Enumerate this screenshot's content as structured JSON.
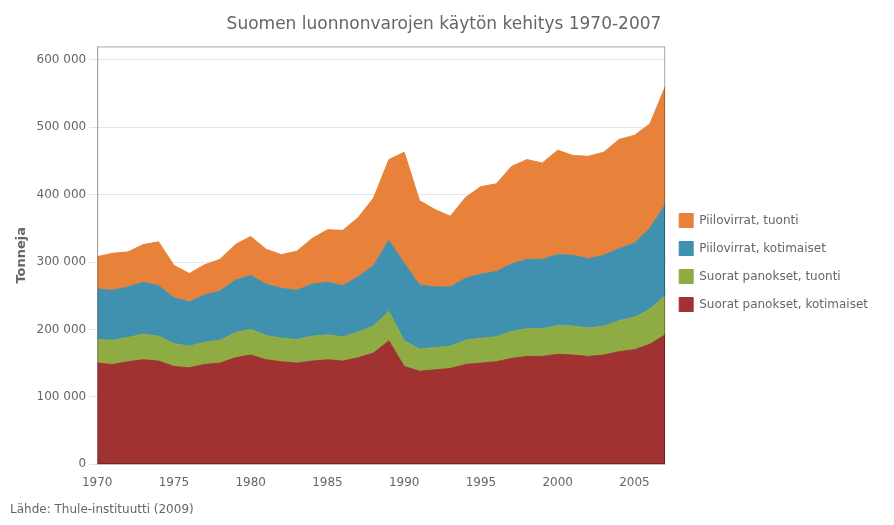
{
  "chart_data": {
    "type": "area",
    "stacked": true,
    "title": "Suomen luonnonvarojen käytön kehitys 1970-2007",
    "ylabel": "Tonneja",
    "annotations": [
      "Lähde: Thule-instituutti (2009)"
    ],
    "x": [
      1970,
      1971,
      1972,
      1973,
      1974,
      1975,
      1976,
      1977,
      1978,
      1979,
      1980,
      1981,
      1982,
      1983,
      1984,
      1985,
      1986,
      1987,
      1988,
      1989,
      1990,
      1991,
      1992,
      1993,
      1994,
      1995,
      1996,
      1997,
      1998,
      1999,
      2000,
      2001,
      2002,
      2003,
      2004,
      2005,
      2006,
      2007
    ],
    "series": [
      {
        "name": "Suorat panokset, kotimaiset",
        "color": "#a03232",
        "values": [
          150000,
          148000,
          152000,
          155000,
          153000,
          145000,
          143000,
          148000,
          150000,
          158000,
          162000,
          155000,
          152000,
          150000,
          153000,
          155000,
          153000,
          158000,
          165000,
          183000,
          145000,
          138000,
          140000,
          142000,
          148000,
          150000,
          152000,
          157000,
          160000,
          160000,
          163000,
          162000,
          160000,
          162000,
          167000,
          170000,
          178000,
          192000
        ]
      },
      {
        "name": "Suorat panokset, tuonti",
        "color": "#8fac44",
        "values": [
          35000,
          36000,
          36000,
          38000,
          37000,
          34000,
          32000,
          33000,
          34000,
          37000,
          38000,
          36000,
          35000,
          35000,
          37000,
          37000,
          36000,
          38000,
          40000,
          44000,
          38000,
          33000,
          33000,
          33000,
          36000,
          37000,
          37000,
          40000,
          41000,
          41000,
          43000,
          43000,
          42000,
          43000,
          46000,
          48000,
          52000,
          58000
        ]
      },
      {
        "name": "Piilovirrat, kotimaiset",
        "color": "#4090b0",
        "values": [
          75000,
          74000,
          75000,
          77000,
          75000,
          68000,
          66000,
          70000,
          73000,
          78000,
          80000,
          76000,
          74000,
          73000,
          77000,
          78000,
          76000,
          82000,
          90000,
          105000,
          115000,
          95000,
          90000,
          88000,
          92000,
          95000,
          97000,
          100000,
          103000,
          103000,
          105000,
          105000,
          103000,
          105000,
          107000,
          110000,
          120000,
          135000
        ]
      },
      {
        "name": "Piilovirrat, tuonti",
        "color": "#e8823a",
        "values": [
          48000,
          55000,
          52000,
          56000,
          65000,
          48000,
          42000,
          45000,
          47000,
          53000,
          58000,
          52000,
          50000,
          58000,
          68000,
          78000,
          82000,
          88000,
          100000,
          120000,
          165000,
          125000,
          115000,
          105000,
          120000,
          130000,
          130000,
          145000,
          148000,
          143000,
          155000,
          148000,
          152000,
          153000,
          162000,
          160000,
          155000,
          175000
        ]
      }
    ],
    "xlim": [
      1970,
      2007
    ],
    "xticks": [
      1970,
      1975,
      1980,
      1985,
      1990,
      1995,
      2000,
      2005
    ],
    "ylim": [
      0,
      620000
    ],
    "yticks": [
      0,
      {
        "value": 100000,
        "label": "100 000"
      },
      {
        "value": 200000,
        "label": "200 000"
      },
      {
        "value": 300000,
        "label": "300 000"
      },
      {
        "value": 400000,
        "label": "400 000"
      },
      {
        "value": 500000,
        "label": "500 000"
      },
      {
        "value": 600000,
        "label": "600 000"
      }
    ],
    "grid": "y",
    "legend": "right"
  }
}
